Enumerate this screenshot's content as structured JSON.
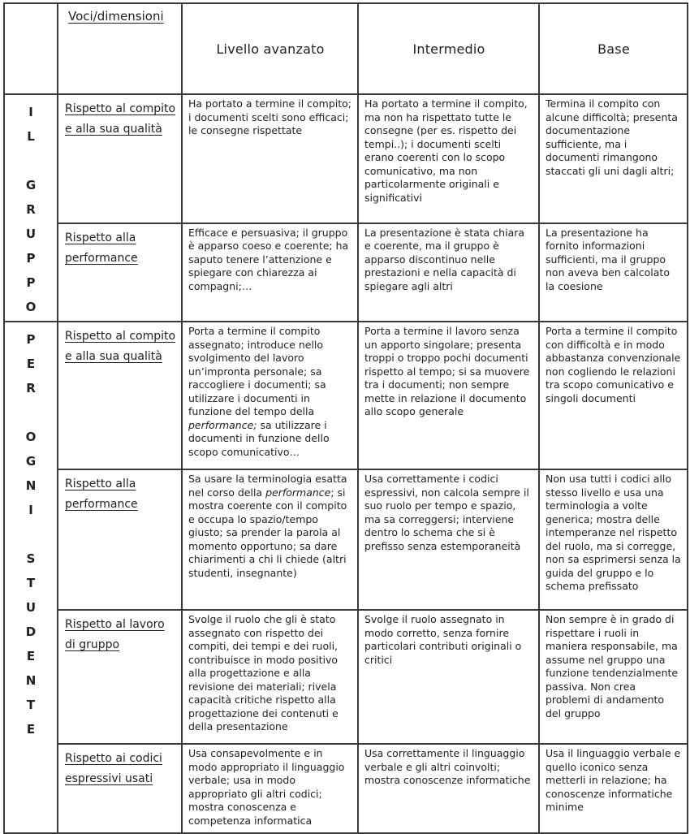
{
  "colors": {
    "background": "#ffffff",
    "border": "#3a3a3a",
    "text": "#1f1f1f"
  },
  "header": {
    "dimension_label": "Voci/dimensioni",
    "levels": [
      "Livello avanzato",
      "Intermedio",
      "Base"
    ]
  },
  "sections": [
    {
      "name": "IL GRUPPO",
      "vertical_label": "I\nL\n\nG\nR\nU\nP\nP\nO",
      "rows": [
        {
          "label": "Rispetto al compito e alla sua qualità",
          "avanzato": "Ha  portato a termine il compito; i documenti scelti sono efficaci; le consegne rispettate",
          "intermedio": "Ha portato a termine il compito, ma non ha rispettato tutte le consegne (per es. rispetto dei tempi..); i documenti scelti erano coerenti con lo scopo comunicativo, ma non particolarmente originali e significativi",
          "base": "Termina il compito con alcune difficoltà; presenta documentazione sufficiente, ma i documenti rimangono staccati gli uni dagli altri;"
        },
        {
          "label": "Rispetto alla performance",
          "avanzato": "Efficace e persuasiva; il gruppo è apparso coeso e coerente; ha saputo tenere l’attenzione e spiegare con chiarezza ai compagni;…",
          "intermedio": "La presentazione è stata chiara e coerente, ma il gruppo è apparso discontinuo nelle prestazioni e nella capacità di spiegare agli altri",
          "base": "La presentazione ha fornito informazioni sufficienti, ma il gruppo non aveva ben calcolato la coesione"
        }
      ]
    },
    {
      "name": "PER OGNI STUDENTE",
      "vertical_label": "P\nE\nR\n\nO\nG\nN\nI\n\nS\nT\nU\nD\nE\nN\nT\nE",
      "rows": [
        {
          "label": "Rispetto al compito e alla sua qualità",
          "avanzato": "Porta a termine il compito assegnato; introduce nello svolgimento del lavoro un’impronta personale; sa raccogliere i documenti; sa utilizzare i  documenti in funzione del tempo della *performance;* sa utilizzare i documenti in funzione dello scopo comunicativo…",
          "intermedio": "Porta a termine il lavoro senza un apporto singolare; presenta troppi o troppo pochi documenti rispetto al tempo; si sa muovere tra i documenti; non sempre mette in relazione il documento allo scopo generale",
          "base": "Porta a termine il compito con difficoltà e in modo abbastanza convenzionale non cogliendo le relazioni tra scopo comunicativo e singoli documenti"
        },
        {
          "label": "Rispetto alla performance",
          "avanzato": "Sa usare la terminologia esatta nel corso della *performance*; si mostra coerente con il compito e occupa lo spazio/tempo giusto; sa prender la parola al momento opportuno; sa dare chiarimenti a chi li chiede (altri studenti, insegnante)",
          "intermedio": "Usa correttamente i codici espressivi, non calcola sempre il suo ruolo per tempo e spazio, ma sa correggersi; interviene dentro lo schema che si è prefisso senza estemporaneità",
          "base": "Non usa tutti i codici allo stesso livello e usa una terminologia a volte generica; mostra delle intemperanze nel rispetto del ruolo, ma si corregge, non sa esprimersi senza la guida del gruppo e lo schema prefissato"
        },
        {
          "label": "Rispetto al lavoro di gruppo",
          "avanzato": "Svolge il ruolo che gli è stato assegnato con rispetto dei compiti, dei tempi e dei ruoli, contribuisce in modo positivo alla progettazione e alla revisione dei materiali; rivela capacità critiche rispetto alla progettazione dei contenuti e della presentazione",
          "intermedio": "Svolge il ruolo assegnato in modo corretto, senza fornire particolari contributi originali o critici",
          "base": "Non sempre è in grado di rispettare i ruoli in maniera responsabile, ma assume nel gruppo una funzione tendenzialmente passiva. Non crea problemi di andamento del gruppo"
        },
        {
          "label": "Rispetto ai codici espressivi usati",
          "avanzato": "Usa consapevolmente e in modo appropriato il linguaggio verbale; usa in modo appropriato gli altri codici; mostra conoscenza e competenza informatica",
          "intermedio": "Usa correttamente il linguaggio verbale e gli altri coinvolti; mostra conoscenze informatiche",
          "base": "Usa il linguaggio verbale e quello iconico senza metterli in relazione; ha conoscenze informatiche minime"
        }
      ]
    }
  ]
}
